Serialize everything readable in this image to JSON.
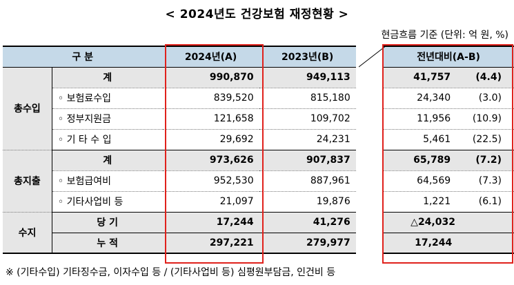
{
  "title": "< 2024년도 건강보험 재정현황 >",
  "unit_note": "현금흐름 기준 (단위: 억 원, %)",
  "headers": {
    "category": "구    분",
    "col_2024": "2024년(A)",
    "col_2023": "2023년(B)",
    "col_diff": "전년대비(A-B)"
  },
  "groups": {
    "income": "총수입",
    "expense": "총지출",
    "balance": "수지"
  },
  "rows": [
    {
      "label": "계",
      "v2024": "990,870",
      "v2023": "949,113",
      "diff": "41,757",
      "pct": "(4.4)"
    },
    {
      "label": "◦ 보험료수입",
      "v2024": "839,520",
      "v2023": "815,180",
      "diff": "24,340",
      "pct": "(3.0)"
    },
    {
      "label": "◦ 정부지원금",
      "v2024": "121,658",
      "v2023": "109,702",
      "diff": "11,956",
      "pct": "(10.9)"
    },
    {
      "label": "◦ 기 타 수 입",
      "v2024": "29,692",
      "v2023": "24,231",
      "diff": "5,461",
      "pct": "(22.5)"
    },
    {
      "label": "계",
      "v2024": "973,626",
      "v2023": "907,837",
      "diff": "65,789",
      "pct": "(7.2)"
    },
    {
      "label": "◦ 보험급여비",
      "v2024": "952,530",
      "v2023": "887,961",
      "diff": "64,569",
      "pct": "(7.3)"
    },
    {
      "label": "◦ 기타사업비 등",
      "v2024": "21,097",
      "v2023": "19,876",
      "diff": "1,221",
      "pct": "(6.1)"
    },
    {
      "label": "당 기",
      "v2024": "17,244",
      "v2023": "41,276",
      "diff": "△24,032",
      "pct": ""
    },
    {
      "label": "누 적",
      "v2024": "297,221",
      "v2023": "279,977",
      "diff": "17,244",
      "pct": ""
    }
  ],
  "footnote": "※ (기타수입) 기타징수금, 이자수입 등 / (기타사업비 등) 심평원부담금, 인건비 등",
  "highlight_color": "#e0201b"
}
